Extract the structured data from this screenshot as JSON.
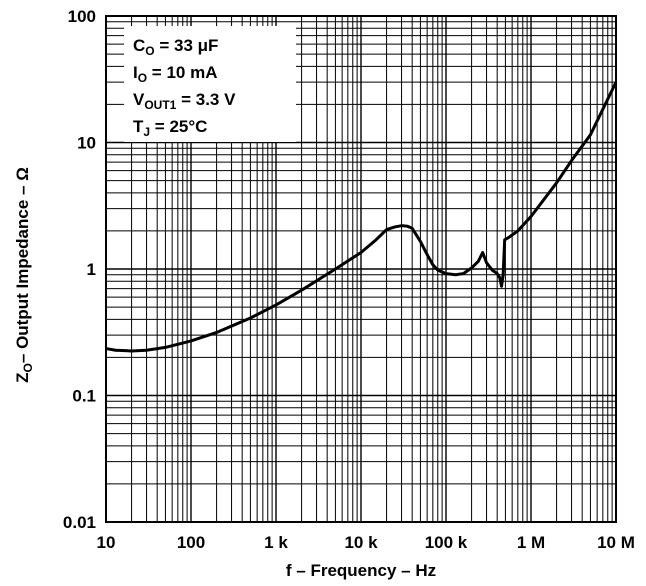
{
  "chart_data": {
    "type": "line",
    "x_scale": "log",
    "y_scale": "log",
    "xlim": [
      10,
      10000000
    ],
    "ylim": [
      0.01,
      100
    ],
    "grid": true,
    "x_tick_labels": [
      {
        "value": 10,
        "label": "10"
      },
      {
        "value": 100,
        "label": "100"
      },
      {
        "value": 1000,
        "label": "1 k"
      },
      {
        "value": 10000,
        "label": "10 k"
      },
      {
        "value": 100000,
        "label": "100 k"
      },
      {
        "value": 1000000,
        "label": "1 M"
      },
      {
        "value": 10000000,
        "label": "10 M"
      }
    ],
    "y_tick_labels": [
      {
        "value": 100,
        "label": "100"
      },
      {
        "value": 10,
        "label": "10"
      },
      {
        "value": 1,
        "label": "1"
      },
      {
        "value": 0.1,
        "label": "0.1"
      },
      {
        "value": 0.01,
        "label": "0.01"
      }
    ],
    "xlabel": "f – Frequency – Hz",
    "ylabel": {
      "main": "Z",
      "sub": "O",
      "rest": "– Output Impedance – Ω"
    },
    "legend_lines": [
      {
        "main": "C",
        "sub": "O",
        "rest": " = 33 μF"
      },
      {
        "main": "I",
        "sub": "O",
        "rest": " = 10 mA"
      },
      {
        "main": "V",
        "sub": "OUT1",
        "rest": " = 3.3 V"
      },
      {
        "main": "T",
        "sub": "J",
        "rest": " = 25°C"
      }
    ],
    "legend_position": "top-left",
    "series": [
      {
        "color": "#000000",
        "points": [
          [
            10,
            0.235
          ],
          [
            13,
            0.228
          ],
          [
            20,
            0.225
          ],
          [
            30,
            0.228
          ],
          [
            50,
            0.24
          ],
          [
            100,
            0.27
          ],
          [
            200,
            0.315
          ],
          [
            500,
            0.41
          ],
          [
            1000,
            0.52
          ],
          [
            2000,
            0.68
          ],
          [
            5000,
            1.0
          ],
          [
            10000,
            1.35
          ],
          [
            15000,
            1.7
          ],
          [
            20000,
            2.05
          ],
          [
            25000,
            2.15
          ],
          [
            30000,
            2.2
          ],
          [
            35000,
            2.18
          ],
          [
            40000,
            2.1
          ],
          [
            50000,
            1.65
          ],
          [
            60000,
            1.3
          ],
          [
            70000,
            1.08
          ],
          [
            80000,
            0.98
          ],
          [
            100000,
            0.92
          ],
          [
            130000,
            0.9
          ],
          [
            160000,
            0.92
          ],
          [
            200000,
            1.02
          ],
          [
            240000,
            1.15
          ],
          [
            270000,
            1.35
          ],
          [
            300000,
            1.12
          ],
          [
            350000,
            0.98
          ],
          [
            400000,
            0.92
          ],
          [
            430000,
            0.85
          ],
          [
            450000,
            0.73
          ],
          [
            470000,
            0.9
          ],
          [
            490000,
            1.7
          ],
          [
            550000,
            1.78
          ],
          [
            700000,
            2.0
          ],
          [
            1000000,
            2.6
          ],
          [
            2000000,
            4.8
          ],
          [
            3000000,
            7.2
          ],
          [
            5000000,
            11.5
          ],
          [
            10000000,
            30
          ]
        ]
      }
    ]
  }
}
